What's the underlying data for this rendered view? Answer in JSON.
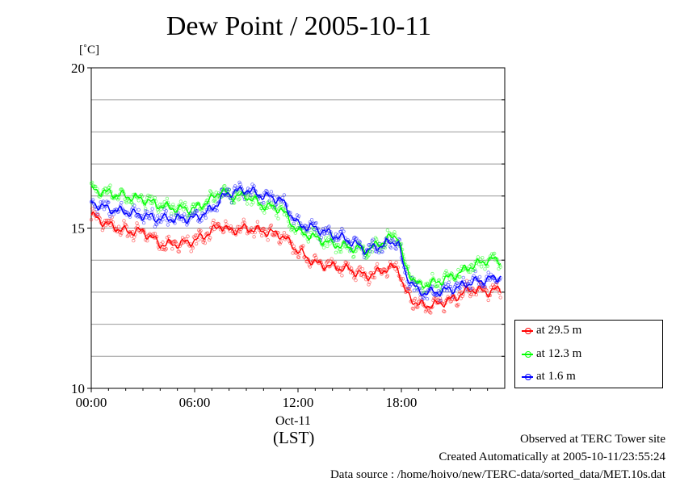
{
  "title": "Dew Point / 2005-10-11",
  "chart_data": {
    "type": "line",
    "title": "Dew Point / 2005-10-11",
    "ylabel": "[˚C]",
    "xlabel": "(LST)",
    "date_label": "Oct-11",
    "xlim": [
      0,
      24
    ],
    "ylim": [
      10,
      20
    ],
    "y_ticks": [
      "20",
      "15",
      "10"
    ],
    "x_ticks": [
      "00:00",
      "06:00",
      "12:00",
      "18:00"
    ],
    "y_gridlines": [
      11,
      12,
      13,
      14,
      15,
      16,
      17,
      18,
      19
    ],
    "grid": true,
    "legend_position": "bottom-right",
    "x_hours": [
      0,
      1,
      2,
      3,
      4,
      5,
      6,
      7,
      7.5,
      8,
      9,
      10,
      11,
      12,
      13,
      14,
      15,
      16,
      17,
      17.8,
      18.2,
      19,
      20,
      21,
      22,
      23,
      23.8
    ],
    "series": [
      {
        "name": "at 29.5 m",
        "color": "#ff0000",
        "values": [
          15.4,
          15.1,
          14.9,
          14.9,
          14.5,
          14.5,
          14.6,
          14.9,
          15.1,
          14.9,
          15.0,
          14.9,
          14.8,
          14.3,
          13.9,
          13.8,
          13.7,
          13.5,
          13.7,
          13.8,
          13.0,
          12.6,
          12.6,
          12.8,
          13.1,
          13.0,
          13.1
        ]
      },
      {
        "name": "at 12.3 m",
        "color": "#00ff00",
        "values": [
          16.2,
          16.1,
          16.0,
          15.9,
          15.7,
          15.6,
          15.6,
          15.9,
          16.2,
          16.0,
          16.0,
          15.7,
          15.6,
          14.9,
          14.7,
          14.5,
          14.4,
          14.3,
          14.6,
          14.8,
          13.8,
          13.2,
          13.3,
          13.5,
          13.8,
          14.0,
          14.0
        ]
      },
      {
        "name": "at 1.6 m",
        "color": "#0000ff",
        "values": [
          15.8,
          15.6,
          15.5,
          15.4,
          15.3,
          15.3,
          15.3,
          15.6,
          15.9,
          16.1,
          16.2,
          16.0,
          15.9,
          15.1,
          15.0,
          14.8,
          14.6,
          14.3,
          14.5,
          14.6,
          13.6,
          13.0,
          13.0,
          13.1,
          13.3,
          13.4,
          13.5
        ]
      }
    ]
  },
  "legend": [
    {
      "label": "at 29.5 m",
      "color": "#ff0000"
    },
    {
      "label": "at 12.3 m",
      "color": "#00ff00"
    },
    {
      "label": "at 1.6 m",
      "color": "#0000ff"
    }
  ],
  "footer": {
    "line1": "Observed at TERC Tower site",
    "line2": "Created Automatically at 2005-10-11/23:55:24",
    "line3": "Data source : /home/hoivo/new/TERC-data/sorted_data/MET.10s.dat"
  }
}
